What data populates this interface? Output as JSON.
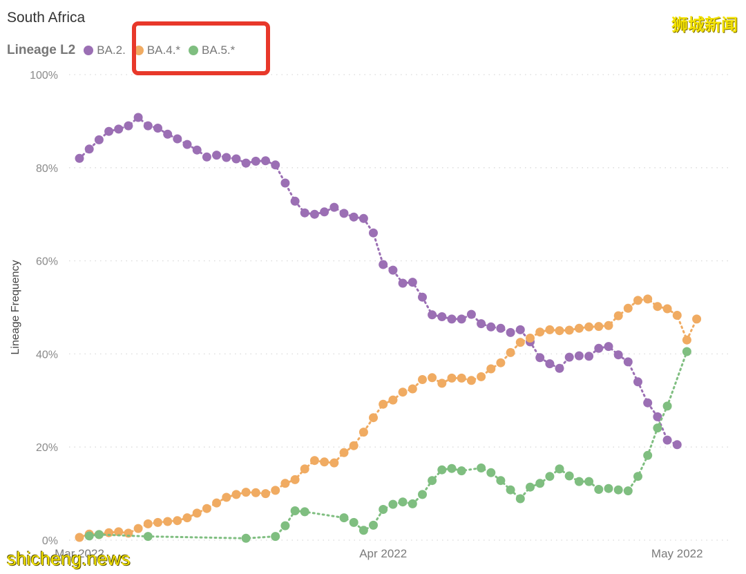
{
  "chart_title": "South Africa",
  "watermarks": {
    "top_right": "狮城新闻",
    "bottom_left": "shicheng.news"
  },
  "colors": {
    "BA.2": "#9b6fb4",
    "BA.4": "#f0ab62",
    "BA.5": "#7fbe80",
    "highlight_box": "#e8382a"
  },
  "chart_data": {
    "type": "scatter",
    "title": "South Africa",
    "xlabel": "",
    "ylabel": "Lineage Frequency",
    "legend_title": "Lineage L2",
    "legend_position": "top-left",
    "ylim": [
      0,
      100
    ],
    "y_ticks": [
      {
        "value": 0,
        "label": "0%"
      },
      {
        "value": 20,
        "label": "20%"
      },
      {
        "value": 40,
        "label": "40%"
      },
      {
        "value": 60,
        "label": "60%"
      },
      {
        "value": 80,
        "label": "80%"
      },
      {
        "value": 100,
        "label": "100%"
      }
    ],
    "x_start": "2022-03-01",
    "x_end": "2022-05-05",
    "x_ticks": [
      {
        "date": "2022-03-01",
        "label": "Mar 2022"
      },
      {
        "date": "2022-04-01",
        "label": "Apr 2022"
      },
      {
        "date": "2022-05-01",
        "label": "May 2022"
      }
    ],
    "grid": "horizontal dotted",
    "series": [
      {
        "name": "BA.2.",
        "points": [
          [
            "2022-03-01",
            82
          ],
          [
            "2022-03-02",
            84
          ],
          [
            "2022-03-03",
            86
          ],
          [
            "2022-03-04",
            87.8
          ],
          [
            "2022-03-05",
            88.3
          ],
          [
            "2022-03-06",
            89
          ],
          [
            "2022-03-07",
            90.8
          ],
          [
            "2022-03-08",
            89
          ],
          [
            "2022-03-09",
            88.5
          ],
          [
            "2022-03-10",
            87.2
          ],
          [
            "2022-03-11",
            86.2
          ],
          [
            "2022-03-12",
            85
          ],
          [
            "2022-03-13",
            83.8
          ],
          [
            "2022-03-14",
            82.3
          ],
          [
            "2022-03-15",
            82.7
          ],
          [
            "2022-03-16",
            82.2
          ],
          [
            "2022-03-17",
            81.9
          ],
          [
            "2022-03-18",
            81
          ],
          [
            "2022-03-19",
            81.4
          ],
          [
            "2022-03-20",
            81.5
          ],
          [
            "2022-03-21",
            80.6
          ],
          [
            "2022-03-22",
            76.7
          ],
          [
            "2022-03-23",
            72.8
          ],
          [
            "2022-03-24",
            70.3
          ],
          [
            "2022-03-25",
            70
          ],
          [
            "2022-03-26",
            70.5
          ],
          [
            "2022-03-27",
            71.5
          ],
          [
            "2022-03-28",
            70.2
          ],
          [
            "2022-03-29",
            69.4
          ],
          [
            "2022-03-30",
            69.1
          ],
          [
            "2022-03-31",
            66
          ],
          [
            "2022-04-01",
            59.2
          ],
          [
            "2022-04-02",
            58
          ],
          [
            "2022-04-03",
            55.2
          ],
          [
            "2022-04-04",
            55.4
          ],
          [
            "2022-04-05",
            52.2
          ],
          [
            "2022-04-06",
            48.4
          ],
          [
            "2022-04-07",
            48
          ],
          [
            "2022-04-08",
            47.5
          ],
          [
            "2022-04-09",
            47.5
          ],
          [
            "2022-04-10",
            48.5
          ],
          [
            "2022-04-11",
            46.5
          ],
          [
            "2022-04-12",
            45.8
          ],
          [
            "2022-04-13",
            45.5
          ],
          [
            "2022-04-14",
            44.6
          ],
          [
            "2022-04-15",
            45.2
          ],
          [
            "2022-04-16",
            42.6
          ],
          [
            "2022-04-17",
            39.2
          ],
          [
            "2022-04-18",
            37.9
          ],
          [
            "2022-04-19",
            36.9
          ],
          [
            "2022-04-20",
            39.3
          ],
          [
            "2022-04-21",
            39.6
          ],
          [
            "2022-04-22",
            39.5
          ],
          [
            "2022-04-23",
            41.2
          ],
          [
            "2022-04-24",
            41.6
          ],
          [
            "2022-04-25",
            39.8
          ],
          [
            "2022-04-26",
            38.3
          ],
          [
            "2022-04-27",
            34
          ],
          [
            "2022-04-28",
            29.5
          ],
          [
            "2022-04-29",
            26.5
          ],
          [
            "2022-04-30",
            21.5
          ],
          [
            "2022-05-01",
            20.5
          ]
        ]
      },
      {
        "name": "BA.4.*",
        "points": [
          [
            "2022-03-01",
            0.6
          ],
          [
            "2022-03-02",
            1.3
          ],
          [
            "2022-03-03",
            1.2
          ],
          [
            "2022-03-04",
            1.6
          ],
          [
            "2022-03-05",
            1.8
          ],
          [
            "2022-03-06",
            1.5
          ],
          [
            "2022-03-07",
            2.5
          ],
          [
            "2022-03-08",
            3.5
          ],
          [
            "2022-03-09",
            3.8
          ],
          [
            "2022-03-10",
            4
          ],
          [
            "2022-03-11",
            4.2
          ],
          [
            "2022-03-12",
            4.8
          ],
          [
            "2022-03-13",
            5.8
          ],
          [
            "2022-03-14",
            6.8
          ],
          [
            "2022-03-15",
            8
          ],
          [
            "2022-03-16",
            9.2
          ],
          [
            "2022-03-17",
            9.8
          ],
          [
            "2022-03-18",
            10.3
          ],
          [
            "2022-03-19",
            10.2
          ],
          [
            "2022-03-20",
            10
          ],
          [
            "2022-03-21",
            10.7
          ],
          [
            "2022-03-22",
            12.2
          ],
          [
            "2022-03-23",
            13
          ],
          [
            "2022-03-24",
            15.3
          ],
          [
            "2022-03-25",
            17.1
          ],
          [
            "2022-03-26",
            16.8
          ],
          [
            "2022-03-27",
            16.6
          ],
          [
            "2022-03-28",
            18.8
          ],
          [
            "2022-03-29",
            20.3
          ],
          [
            "2022-03-30",
            23.2
          ],
          [
            "2022-03-31",
            26.3
          ],
          [
            "2022-04-01",
            29.2
          ],
          [
            "2022-04-02",
            30.1
          ],
          [
            "2022-04-03",
            31.8
          ],
          [
            "2022-04-04",
            32.5
          ],
          [
            "2022-04-05",
            34.5
          ],
          [
            "2022-04-06",
            34.9
          ],
          [
            "2022-04-07",
            33.7
          ],
          [
            "2022-04-08",
            34.8
          ],
          [
            "2022-04-09",
            34.8
          ],
          [
            "2022-04-10",
            34.3
          ],
          [
            "2022-04-11",
            35.1
          ],
          [
            "2022-04-12",
            36.8
          ],
          [
            "2022-04-13",
            38.1
          ],
          [
            "2022-04-14",
            40.3
          ],
          [
            "2022-04-15",
            42.5
          ],
          [
            "2022-04-16",
            43.4
          ],
          [
            "2022-04-17",
            44.7
          ],
          [
            "2022-04-18",
            45.2
          ],
          [
            "2022-04-19",
            45
          ],
          [
            "2022-04-20",
            45.1
          ],
          [
            "2022-04-21",
            45.5
          ],
          [
            "2022-04-22",
            45.8
          ],
          [
            "2022-04-23",
            45.9
          ],
          [
            "2022-04-24",
            46.1
          ],
          [
            "2022-04-25",
            48.2
          ],
          [
            "2022-04-26",
            49.8
          ],
          [
            "2022-04-27",
            51.5
          ],
          [
            "2022-04-28",
            51.8
          ],
          [
            "2022-04-29",
            50.2
          ],
          [
            "2022-04-30",
            49.7
          ],
          [
            "2022-05-01",
            48.3
          ],
          [
            "2022-05-02",
            43
          ],
          [
            "2022-05-03",
            47.5
          ]
        ]
      },
      {
        "name": "BA.5.*",
        "points": [
          [
            "2022-03-02",
            0.9
          ],
          [
            "2022-03-03",
            1.2
          ],
          [
            "2022-03-08",
            0.8
          ],
          [
            "2022-03-18",
            0.4
          ],
          [
            "2022-03-21",
            0.8
          ],
          [
            "2022-03-22",
            3.1
          ],
          [
            "2022-03-23",
            6.3
          ],
          [
            "2022-03-24",
            6.1
          ],
          [
            "2022-03-28",
            4.8
          ],
          [
            "2022-03-29",
            3.8
          ],
          [
            "2022-03-30",
            2.1
          ],
          [
            "2022-03-31",
            3.2
          ],
          [
            "2022-04-01",
            6.6
          ],
          [
            "2022-04-02",
            7.7
          ],
          [
            "2022-04-03",
            8.2
          ],
          [
            "2022-04-04",
            7.8
          ],
          [
            "2022-04-05",
            9.8
          ],
          [
            "2022-04-06",
            12.8
          ],
          [
            "2022-04-07",
            15.1
          ],
          [
            "2022-04-08",
            15.4
          ],
          [
            "2022-04-09",
            14.9
          ],
          [
            "2022-04-11",
            15.5
          ],
          [
            "2022-04-12",
            14.5
          ],
          [
            "2022-04-13",
            12.8
          ],
          [
            "2022-04-14",
            10.8
          ],
          [
            "2022-04-15",
            8.9
          ],
          [
            "2022-04-16",
            11.4
          ],
          [
            "2022-04-17",
            12.2
          ],
          [
            "2022-04-18",
            13.7
          ],
          [
            "2022-04-19",
            15.3
          ],
          [
            "2022-04-20",
            13.8
          ],
          [
            "2022-04-21",
            12.6
          ],
          [
            "2022-04-22",
            12.6
          ],
          [
            "2022-04-23",
            10.9
          ],
          [
            "2022-04-24",
            11.1
          ],
          [
            "2022-04-25",
            10.8
          ],
          [
            "2022-04-26",
            10.6
          ],
          [
            "2022-04-27",
            13.7
          ],
          [
            "2022-04-28",
            18.2
          ],
          [
            "2022-04-29",
            24.1
          ],
          [
            "2022-04-30",
            28.8
          ],
          [
            "2022-05-02",
            40.5
          ]
        ]
      }
    ]
  }
}
